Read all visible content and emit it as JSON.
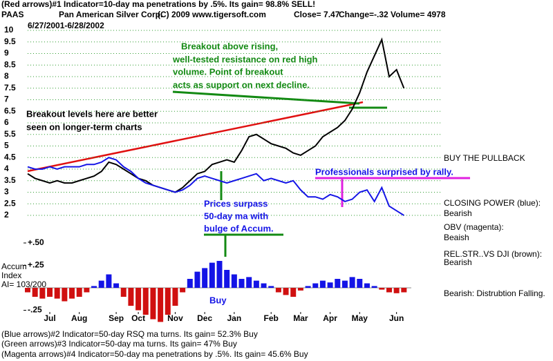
{
  "chart_data": {
    "type": "line",
    "header": {
      "line1": "(Red arrows)#1 Indicator=10-day ma penetrations by .5%. Its gain= 98.8% SELL!",
      "ticker": "PAAS",
      "company": "Pan American Silver Corp.",
      "source": "(C) 2009 www.tigersoft.com",
      "close": "Close=  7.47",
      "change": "Change=-.32 Volume= 4978",
      "dates": "6/27/2001-6/28/2002"
    },
    "xlim": [
      0,
      52
    ],
    "xticks": [
      {
        "value": 3,
        "label": "Jul"
      },
      {
        "value": 7,
        "label": "Aug"
      },
      {
        "value": 12,
        "label": "Sep"
      },
      {
        "value": 15,
        "label": "Oct"
      },
      {
        "value": 20,
        "label": "Nov"
      },
      {
        "value": 24,
        "label": "Dec"
      },
      {
        "value": 28,
        "label": "Jan"
      },
      {
        "value": 33,
        "label": "Feb"
      },
      {
        "value": 37,
        "label": "Mar"
      },
      {
        "value": 41,
        "label": "Apr"
      },
      {
        "value": 45,
        "label": "May"
      },
      {
        "value": 50,
        "label": "Jun"
      }
    ],
    "ylim": [
      2,
      10
    ],
    "yticks": [
      10,
      9.5,
      9,
      8.5,
      8,
      7.5,
      7,
      6.5,
      6,
      5.5,
      5,
      4.5,
      4,
      3.5,
      3,
      2.5,
      2
    ],
    "grid": true,
    "series": [
      {
        "name": "Price",
        "color": "#000000",
        "values": [
          3.8,
          3.6,
          3.5,
          3.4,
          3.5,
          3.4,
          3.4,
          3.5,
          3.6,
          3.7,
          3.9,
          4.3,
          4.2,
          4.0,
          3.8,
          3.6,
          3.5,
          3.3,
          3.2,
          3.1,
          3.0,
          3.2,
          3.5,
          3.8,
          3.9,
          4.2,
          4.3,
          4.4,
          4.3,
          4.8,
          5.4,
          5.5,
          5.3,
          5.1,
          5.0,
          4.9,
          4.7,
          4.6,
          4.8,
          5.0,
          5.4,
          5.6,
          5.8,
          6.1,
          6.6,
          7.3,
          8.2,
          8.9,
          9.6,
          8.0,
          8.3,
          7.5
        ]
      },
      {
        "name": "CLOSING POWER (blue):",
        "color": "#1414e6",
        "values": [
          4.1,
          4.0,
          4.0,
          4.1,
          4.0,
          4.1,
          4.1,
          4.1,
          4.2,
          4.2,
          4.3,
          4.5,
          4.4,
          4.1,
          3.9,
          3.6,
          3.4,
          3.3,
          3.2,
          3.1,
          3.0,
          3.1,
          3.3,
          3.6,
          3.7,
          3.6,
          3.5,
          3.4,
          3.5,
          3.6,
          3.7,
          3.8,
          3.5,
          3.6,
          3.5,
          3.4,
          3.5,
          3.1,
          2.8,
          2.8,
          2.7,
          2.9,
          2.8,
          2.6,
          2.7,
          3.0,
          3.1,
          2.6,
          3.2,
          2.4,
          2.2,
          2.0
        ]
      },
      {
        "name": "Accum",
        "axis": "y2",
        "positive_color": "#1414e6",
        "negative_color": "#d01010",
        "values": [
          -0.05,
          -0.1,
          -0.12,
          -0.1,
          -0.12,
          -0.15,
          -0.12,
          -0.1,
          -0.05,
          0.02,
          0.08,
          0.15,
          0.05,
          -0.1,
          -0.2,
          -0.25,
          -0.3,
          -0.35,
          -0.38,
          -0.3,
          -0.2,
          -0.05,
          0.1,
          0.18,
          0.22,
          0.28,
          0.3,
          0.2,
          0.15,
          0.1,
          0.12,
          0.08,
          0.05,
          0.02,
          -0.05,
          -0.08,
          -0.1,
          -0.03,
          0.02,
          0.05,
          0.08,
          0.06,
          0.1,
          0.08,
          0.12,
          0.1,
          0.05,
          0.02,
          -0.02,
          -0.05,
          -0.06,
          -0.05
        ]
      }
    ],
    "y2lim": [
      -0.4,
      0.5
    ],
    "y2ticks": [
      {
        "value": 0.5,
        "label": "+.50"
      },
      {
        "value": 0.25,
        "label": "+.25"
      },
      {
        "value": -0.25,
        "label": "-.25"
      }
    ],
    "accum_labels": [
      "Index",
      "AI= 103/200"
    ],
    "annotations": {
      "breakout": [
        "Breakout above rising,",
        "well-tested resistance on red high",
        "volume.  Point of breakout",
        "acts as support on next decline."
      ],
      "levels": [
        "Breakout levels here are better",
        "seen on longer-term charts"
      ],
      "surpass": [
        "Prices surpass",
        "50-day ma with",
        "bulge of Accum."
      ],
      "professionals": "Professionals surprised by rally.",
      "buy": "Buy",
      "pullback": "BUY THE PULLBACK"
    },
    "side_notes": [
      "Bearish",
      "OBV (magenta):",
      "Beaish",
      "REL.STR..VS DJI (brown):",
      "Bearish",
      "Bearish: Distrubtion Falling."
    ],
    "footer": [
      "(Blue arrows)#2 Indicator=50-day RSQ ma turns. Its gain= 52.3% Buy",
      "(Green arrows)#3 Indicator=50-day ma turns. Its gain= 47% Buy",
      "(Magenta arrows)#4 Indicator=50-day ma penetrations by .5%. Its gain= 45.6% Buy"
    ]
  }
}
